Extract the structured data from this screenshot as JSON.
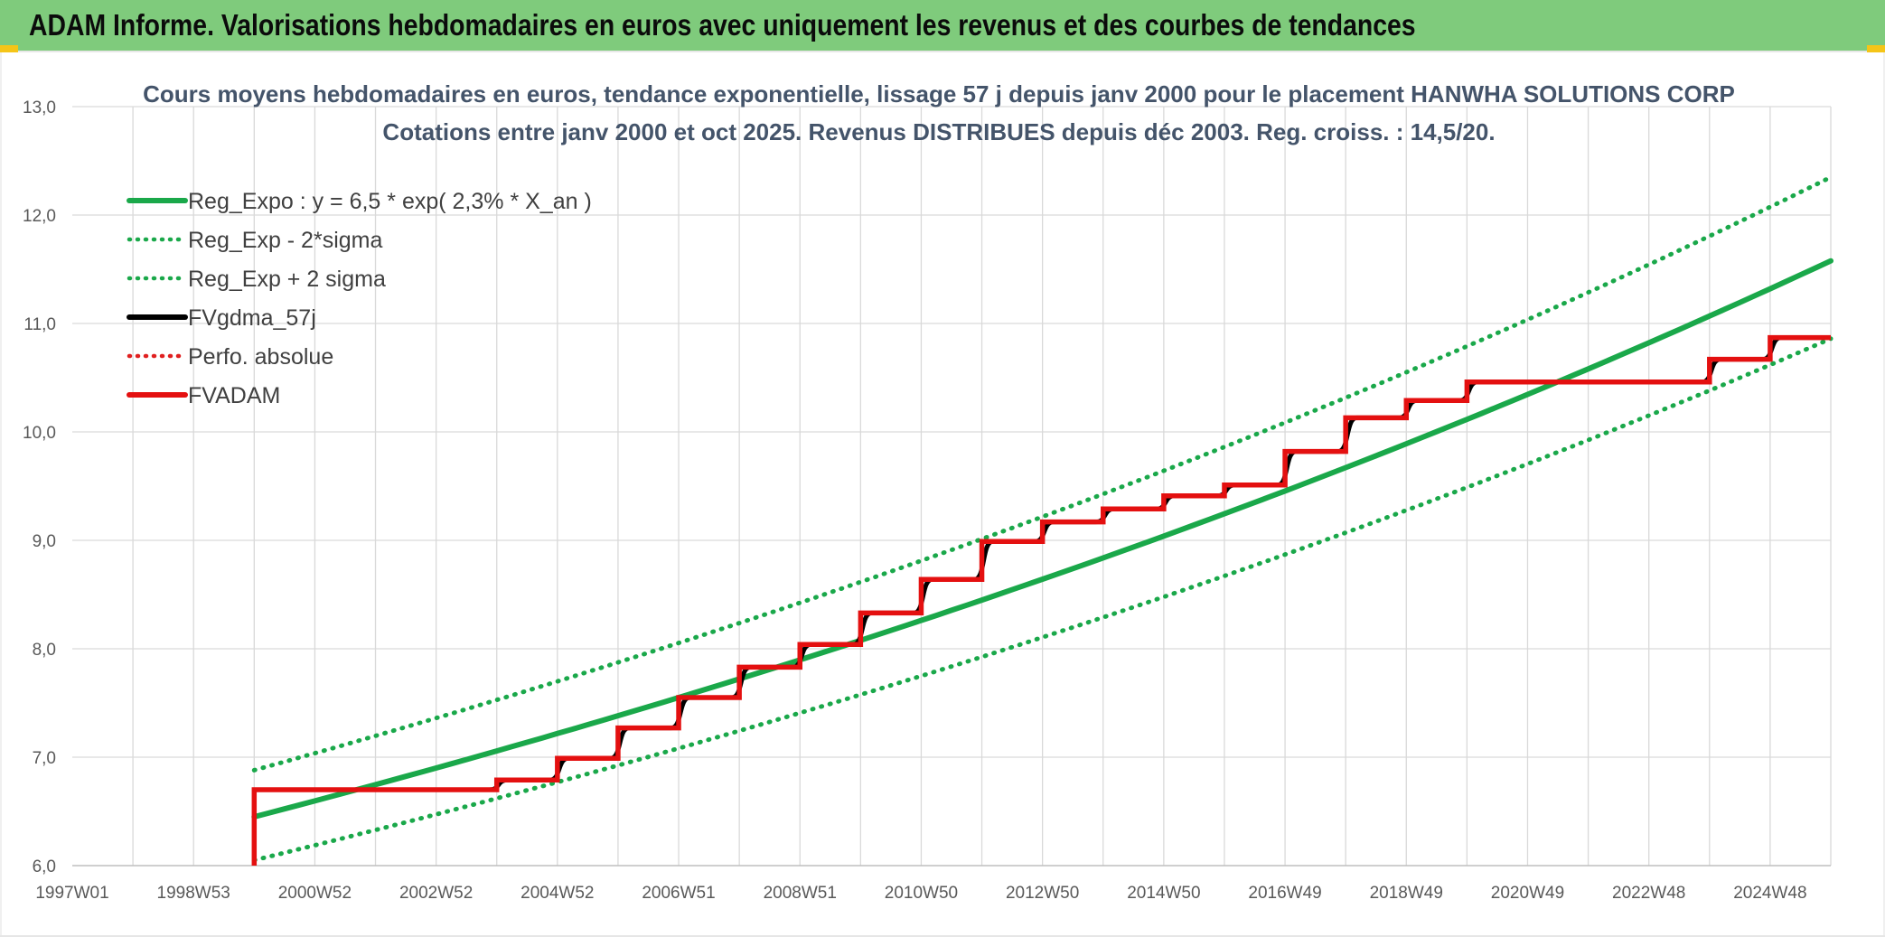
{
  "banner": {
    "title": "ADAM Informe. Valorisations hebdomadaires en euros avec uniquement les revenus et des courbes de tendances"
  },
  "chart_data": {
    "type": "line",
    "title_line1": "Cours moyens hebdomadaires en euros, tendance exponentielle, lissage 57 j depuis janv 2000 pour le placement HANWHA SOLUTIONS CORP",
    "title_line2": "Cotations entre janv 2000 et oct 2025. Revenus DISTRIBUES depuis déc 2003. Reg. croiss. : 14,5/20.",
    "xlabel": "",
    "ylabel": "",
    "ylim": [
      6.0,
      13.0
    ],
    "xlim": [
      1997.0,
      2026.0
    ],
    "y_ticks": [
      "6,0",
      "7,0",
      "8,0",
      "9,0",
      "10,0",
      "11,0",
      "12,0",
      "13,0"
    ],
    "x_ticks": [
      "1997W01",
      "1998W53",
      "2000W52",
      "2002W52",
      "2004W52",
      "2006W51",
      "2008W51",
      "2010W50",
      "2012W50",
      "2014W50",
      "2016W49",
      "2018W49",
      "2020W49",
      "2022W48",
      "2024W48"
    ],
    "grid": true,
    "legend_position": "top-left",
    "series": [
      {
        "name": "Reg_Expo : y = 6,5 * exp( 2,3% *  X_an )",
        "color": "#1aa84a",
        "style": "solid",
        "x": [
          2000.0,
          2026.0
        ],
        "y": [
          6.45,
          11.56
        ],
        "a": 6.45,
        "b": 0.0225
      },
      {
        "name": "Reg_Exp - 2*sigma",
        "color": "#1aa84a",
        "style": "dotted",
        "x": [
          2000.0,
          2026.0
        ],
        "y": [
          6.05,
          10.82
        ],
        "a": 6.05,
        "b": 0.0225
      },
      {
        "name": "Reg_Exp + 2 sigma",
        "color": "#1aa84a",
        "style": "dotted",
        "x": [
          2000.0,
          2026.0
        ],
        "y": [
          6.88,
          12.34
        ],
        "a": 6.88,
        "b": 0.0225
      },
      {
        "name": "FVgdma_57j",
        "color": "#000000",
        "style": "solid"
      },
      {
        "name": "Perfo. absolue",
        "color": "#e02020",
        "style": "dotted"
      },
      {
        "name": "FVADAM",
        "color": "#e41010",
        "style": "solid",
        "steps": [
          [
            2000.0,
            6.0
          ],
          [
            2000.0,
            6.7
          ],
          [
            2003.0,
            6.7
          ],
          [
            2004.0,
            6.79
          ],
          [
            2005.0,
            6.99
          ],
          [
            2006.0,
            7.27
          ],
          [
            2007.0,
            7.55
          ],
          [
            2008.0,
            7.83
          ],
          [
            2009.0,
            8.04
          ],
          [
            2010.0,
            8.33
          ],
          [
            2011.0,
            8.64
          ],
          [
            2012.0,
            8.99
          ],
          [
            2013.0,
            9.17
          ],
          [
            2014.0,
            9.29
          ],
          [
            2015.0,
            9.41
          ],
          [
            2016.0,
            9.51
          ],
          [
            2017.0,
            9.82
          ],
          [
            2018.0,
            10.13
          ],
          [
            2019.0,
            10.29
          ],
          [
            2020.0,
            10.46
          ],
          [
            2024.0,
            10.67
          ],
          [
            2025.0,
            10.87
          ],
          [
            2026.0,
            10.87
          ]
        ]
      }
    ]
  }
}
